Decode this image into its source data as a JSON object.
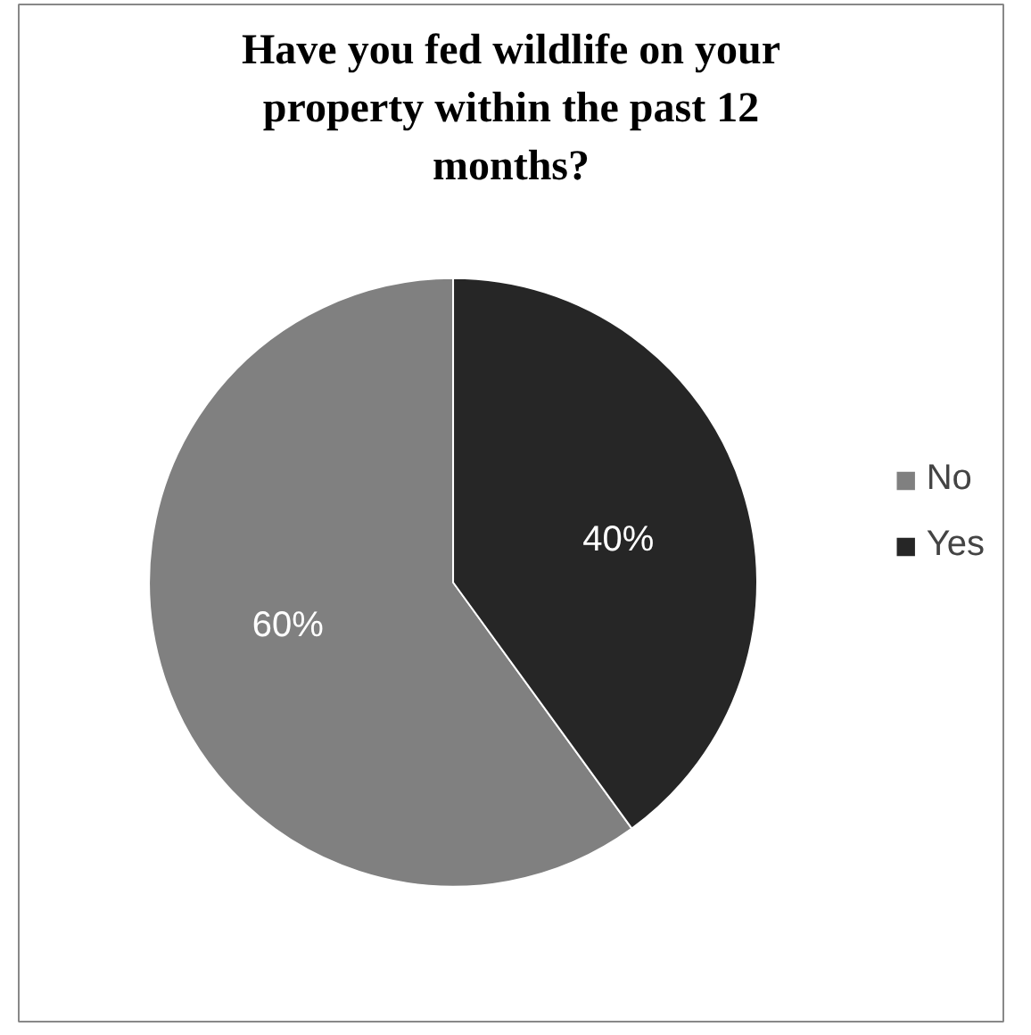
{
  "chart_data": {
    "type": "pie",
    "title": "Have you fed wildlife on your property within the past 12 months?",
    "categories": [
      "No",
      "Yes"
    ],
    "values": [
      60,
      40
    ],
    "colors": [
      "#808080",
      "#262626"
    ],
    "value_labels": [
      "60%",
      "40%"
    ],
    "legend": "right"
  }
}
